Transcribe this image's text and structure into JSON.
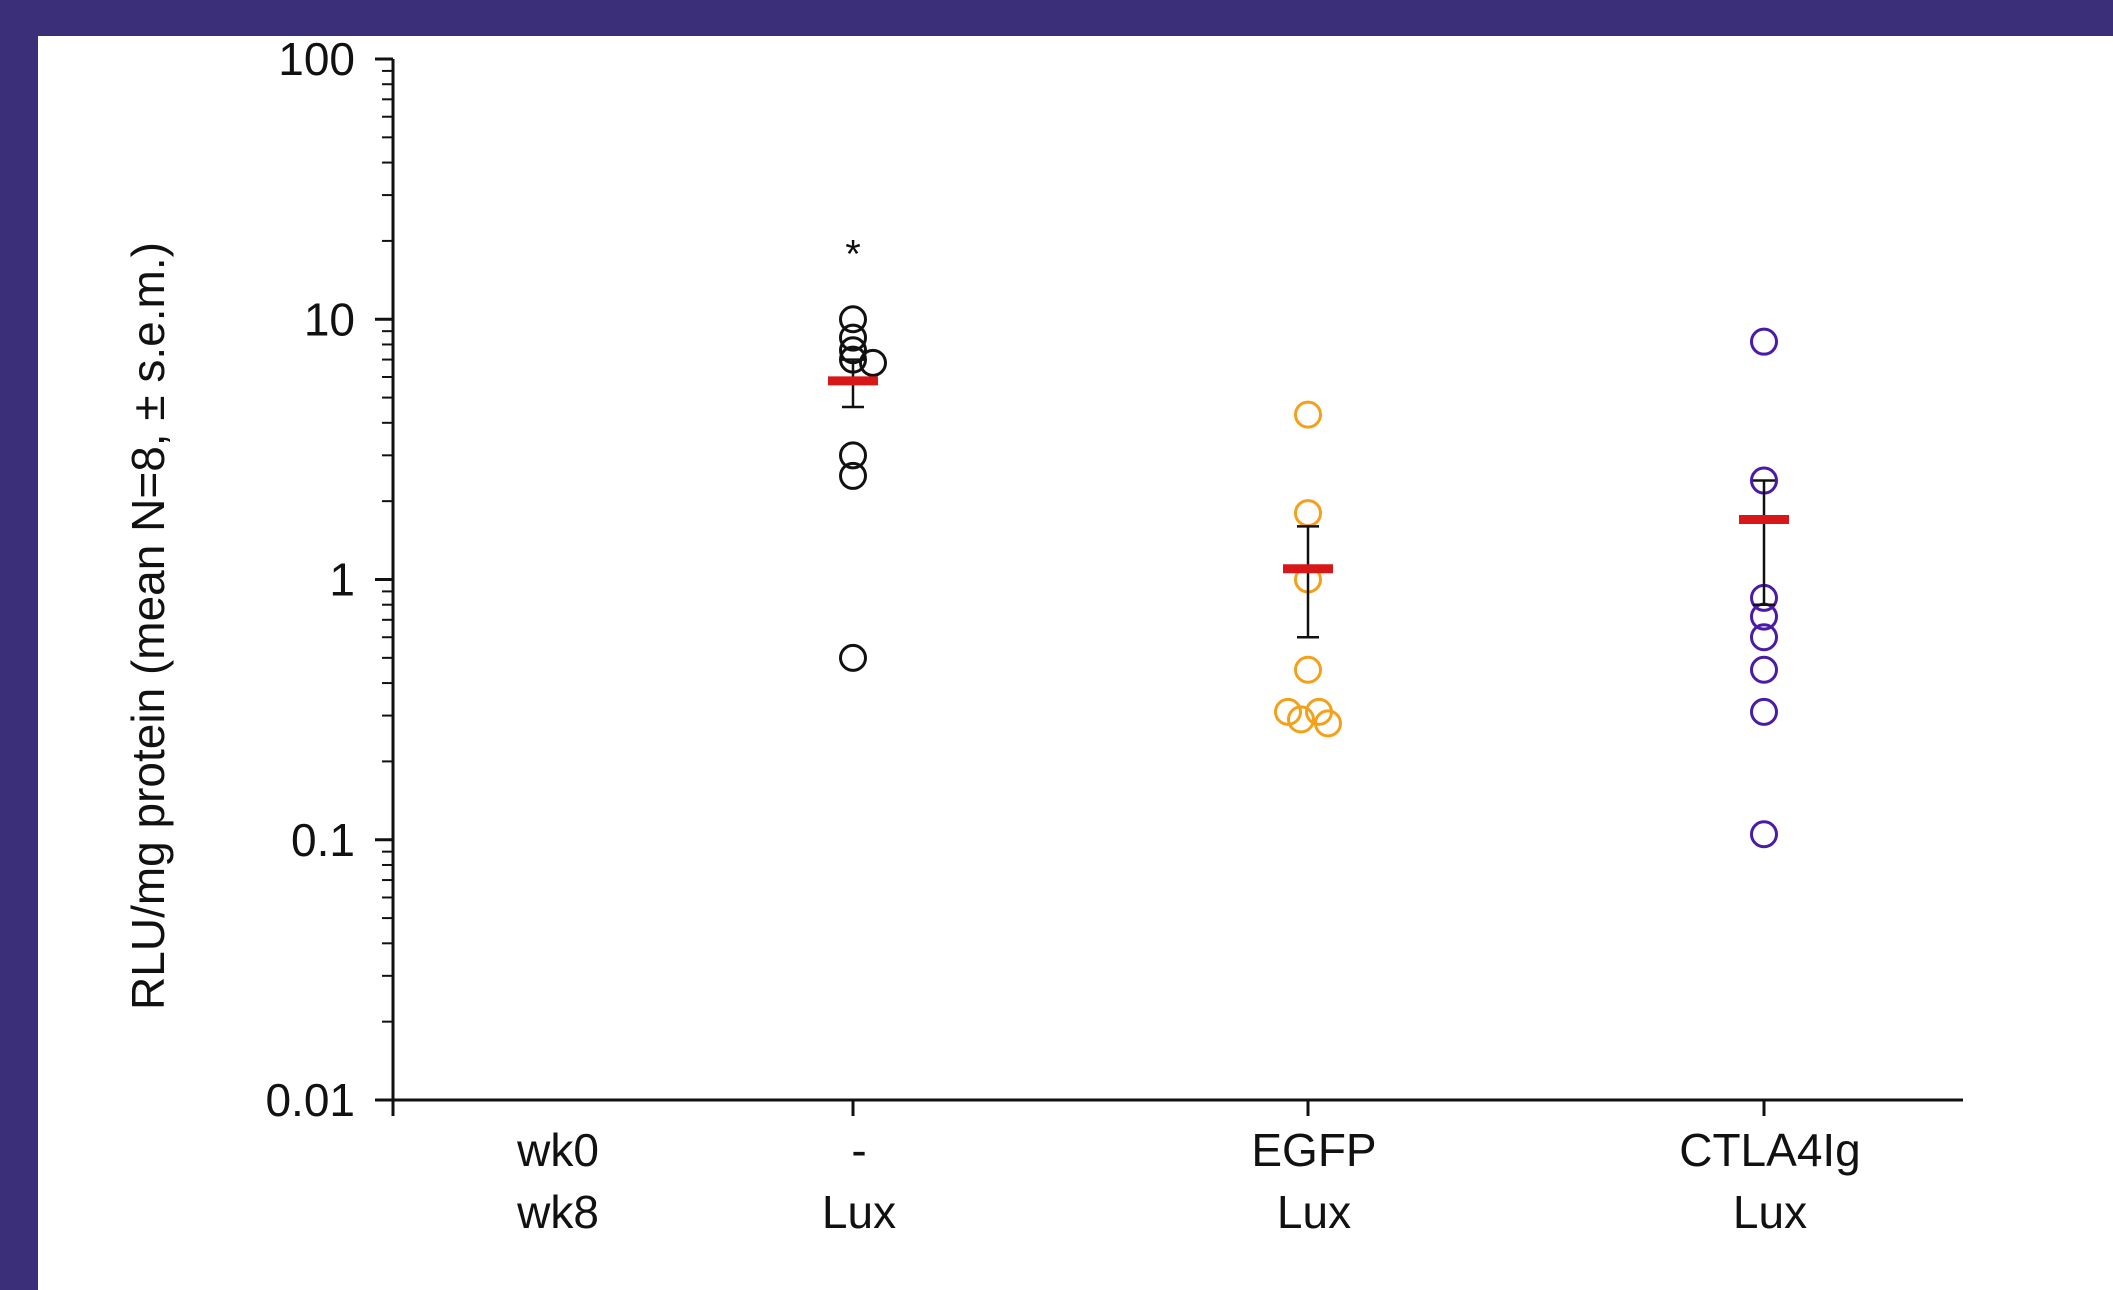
{
  "chart_data": {
    "type": "scatter",
    "y_scale": "log",
    "ylim": [
      0.01,
      100
    ],
    "ylabel": "RLU/mg protein (mean N=8, ± s.e.m.)",
    "y_ticks": [
      {
        "value": 100,
        "label": "100"
      },
      {
        "value": 10,
        "label": "10"
      },
      {
        "value": 1,
        "label": "1"
      },
      {
        "value": 0.1,
        "label": "0.1"
      },
      {
        "value": 0.01,
        "label": "0.01"
      }
    ],
    "row_labels": [
      "wk0",
      "wk8"
    ],
    "categories": [
      {
        "wk0": "-",
        "wk8": "Lux"
      },
      {
        "wk0": "EGFP",
        "wk8": "Lux"
      },
      {
        "wk0": "CTLA4Ig",
        "wk8": "Lux"
      }
    ],
    "grid": false,
    "series": [
      {
        "color": "#111111",
        "mean": 5.8,
        "sem_low": 4.6,
        "sem_high": 7.0,
        "annotation": "*",
        "points": [
          {
            "value": 10.0,
            "jitter": 0
          },
          {
            "value": 8.5,
            "jitter": 0
          },
          {
            "value": 7.6,
            "jitter": 0
          },
          {
            "value": 7.0,
            "jitter": 0
          },
          {
            "value": 6.8,
            "jitter": 1
          },
          {
            "value": 3.0,
            "jitter": 0
          },
          {
            "value": 2.5,
            "jitter": 0
          },
          {
            "value": 0.5,
            "jitter": 0
          }
        ]
      },
      {
        "color": "#f5a01a",
        "mean": 1.1,
        "sem_low": 0.6,
        "sem_high": 1.6,
        "points": [
          {
            "value": 4.3,
            "jitter": 0
          },
          {
            "value": 1.8,
            "jitter": 0
          },
          {
            "value": 1.0,
            "jitter": 0
          },
          {
            "value": 0.45,
            "jitter": 0
          },
          {
            "value": 0.31,
            "jitter": -1
          },
          {
            "value": 0.31,
            "jitter": 0.55
          },
          {
            "value": 0.29,
            "jitter": -0.35
          },
          {
            "value": 0.28,
            "jitter": 1
          }
        ]
      },
      {
        "color": "#4a1aa8",
        "mean": 1.7,
        "sem_low": 0.8,
        "sem_high": 2.4,
        "points": [
          {
            "value": 8.2,
            "jitter": 0
          },
          {
            "value": 2.4,
            "jitter": 0
          },
          {
            "value": 0.85,
            "jitter": 0
          },
          {
            "value": 0.72,
            "jitter": 0
          },
          {
            "value": 0.6,
            "jitter": 0
          },
          {
            "value": 0.45,
            "jitter": 0
          },
          {
            "value": 0.31,
            "jitter": 0
          },
          {
            "value": 0.105,
            "jitter": 0
          }
        ]
      }
    ]
  },
  "style": {
    "background": "#3b2f7a",
    "panel": "#ffffff",
    "mean_color": "#d81818",
    "axis_color": "#111111"
  }
}
